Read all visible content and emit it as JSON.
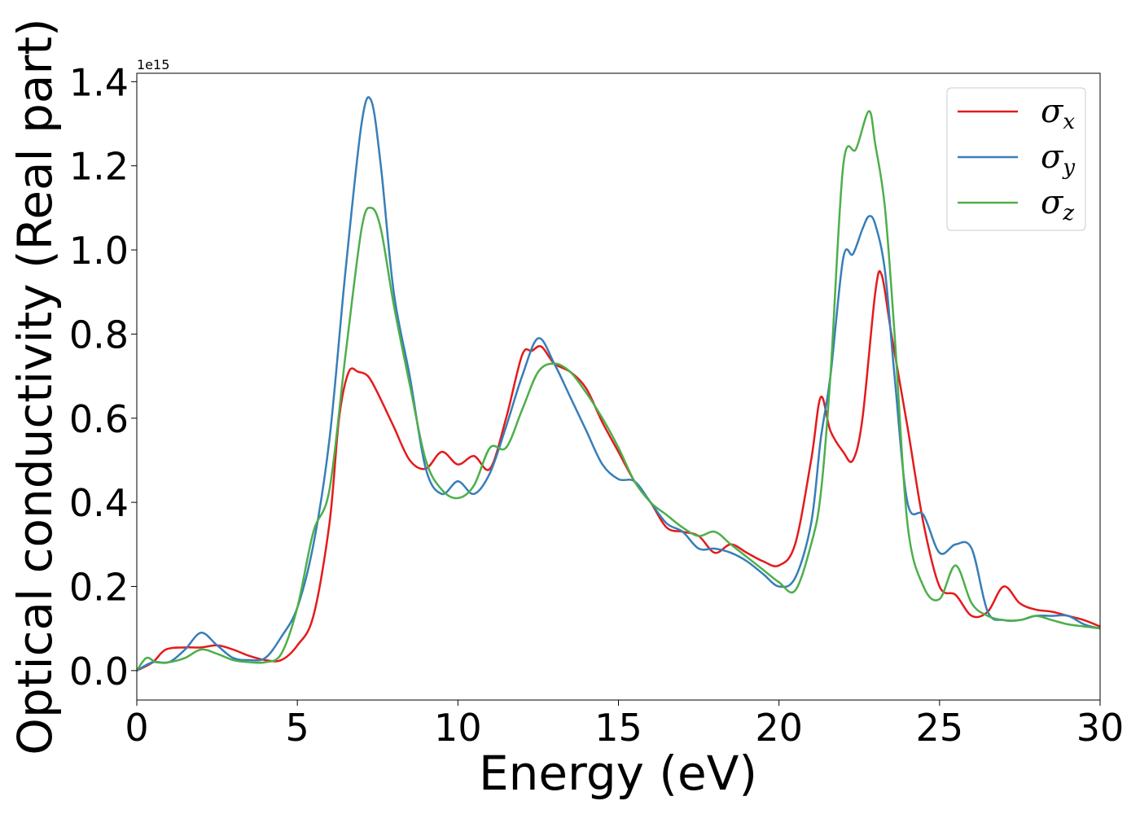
{
  "chart_data": {
    "type": "line",
    "title": "",
    "xlabel": "Energy (eV)",
    "ylabel": "Optical conductivity (Real part)",
    "y_offset_label": "1e15",
    "xlim": [
      0,
      30
    ],
    "ylim": [
      -0.07,
      1.42
    ],
    "xticks": [
      0,
      5,
      10,
      15,
      20,
      25,
      30
    ],
    "xtick_labels": [
      "0",
      "5",
      "10",
      "15",
      "20",
      "25",
      "30"
    ],
    "yticks": [
      0.0,
      0.2,
      0.4,
      0.6,
      0.8,
      1.0,
      1.2,
      1.4
    ],
    "ytick_labels": [
      "0.0",
      "0.2",
      "0.4",
      "0.6",
      "0.8",
      "1.0",
      "1.2",
      "1.4"
    ],
    "grid": false,
    "legend_position": "top-right",
    "series": [
      {
        "name": "σx",
        "legend_base": "σ",
        "legend_sub": "x",
        "color": "#e41a1c",
        "x": [
          0,
          0.5,
          0.9,
          1.5,
          2.0,
          2.5,
          3.0,
          3.5,
          4.0,
          4.5,
          5.0,
          5.5,
          6.0,
          6.3,
          6.6,
          6.9,
          7.2,
          7.5,
          8.0,
          8.5,
          9.0,
          9.5,
          10.0,
          10.5,
          11.0,
          11.5,
          12.0,
          12.3,
          12.6,
          13.0,
          13.5,
          14.0,
          14.5,
          15.0,
          15.5,
          16.0,
          16.5,
          17.0,
          17.5,
          18.0,
          18.5,
          19.0,
          19.5,
          20.0,
          20.5,
          21.0,
          21.3,
          21.6,
          22.0,
          22.3,
          22.6,
          23.0,
          23.2,
          23.5,
          24.0,
          24.5,
          25.0,
          25.5,
          26.0,
          26.5,
          27.0,
          27.5,
          28.0,
          28.5,
          29.0,
          29.5,
          30.0
        ],
        "values": [
          0.0,
          0.02,
          0.05,
          0.055,
          0.055,
          0.06,
          0.05,
          0.035,
          0.025,
          0.025,
          0.06,
          0.13,
          0.35,
          0.6,
          0.71,
          0.71,
          0.7,
          0.66,
          0.58,
          0.5,
          0.48,
          0.52,
          0.49,
          0.51,
          0.48,
          0.6,
          0.75,
          0.76,
          0.77,
          0.73,
          0.71,
          0.67,
          0.59,
          0.52,
          0.45,
          0.4,
          0.34,
          0.33,
          0.32,
          0.28,
          0.3,
          0.28,
          0.26,
          0.25,
          0.3,
          0.5,
          0.65,
          0.57,
          0.52,
          0.5,
          0.6,
          0.9,
          0.94,
          0.8,
          0.58,
          0.35,
          0.2,
          0.18,
          0.13,
          0.14,
          0.2,
          0.16,
          0.145,
          0.14,
          0.13,
          0.12,
          0.105
        ]
      },
      {
        "name": "σy",
        "legend_base": "σ",
        "legend_sub": "y",
        "color": "#377eb8",
        "x": [
          0,
          0.5,
          1.0,
          1.5,
          2.0,
          2.5,
          3.0,
          3.5,
          4.0,
          4.5,
          5.0,
          5.5,
          6.0,
          6.5,
          7.0,
          7.3,
          7.6,
          8.0,
          8.5,
          9.0,
          9.5,
          10.0,
          10.5,
          11.0,
          11.5,
          12.0,
          12.5,
          13.0,
          13.5,
          14.0,
          14.5,
          15.0,
          15.5,
          16.0,
          16.5,
          17.0,
          17.5,
          18.0,
          18.5,
          19.0,
          19.5,
          20.0,
          20.5,
          21.0,
          21.3,
          21.6,
          22.0,
          22.3,
          22.6,
          22.8,
          23.0,
          23.3,
          23.6,
          24.0,
          24.5,
          25.0,
          25.5,
          26.0,
          26.5,
          27.0,
          27.5,
          28.0,
          28.5,
          29.0,
          29.5,
          30.0
        ],
        "values": [
          0.0,
          0.02,
          0.02,
          0.05,
          0.09,
          0.06,
          0.03,
          0.025,
          0.03,
          0.08,
          0.15,
          0.3,
          0.55,
          0.95,
          1.3,
          1.355,
          1.2,
          0.9,
          0.7,
          0.48,
          0.42,
          0.45,
          0.42,
          0.47,
          0.58,
          0.7,
          0.79,
          0.73,
          0.65,
          0.57,
          0.49,
          0.455,
          0.45,
          0.4,
          0.35,
          0.33,
          0.29,
          0.29,
          0.28,
          0.26,
          0.23,
          0.2,
          0.22,
          0.35,
          0.55,
          0.7,
          0.98,
          0.99,
          1.05,
          1.08,
          1.06,
          0.95,
          0.7,
          0.4,
          0.37,
          0.28,
          0.3,
          0.29,
          0.14,
          0.12,
          0.12,
          0.13,
          0.13,
          0.13,
          0.11,
          0.1
        ]
      },
      {
        "name": "σz",
        "legend_base": "σ",
        "legend_sub": "z",
        "color": "#4daf4a",
        "x": [
          0,
          0.3,
          0.6,
          1.0,
          1.5,
          2.0,
          2.5,
          3.0,
          3.5,
          4.0,
          4.5,
          5.0,
          5.5,
          6.0,
          6.5,
          7.0,
          7.3,
          7.6,
          8.0,
          8.5,
          9.0,
          9.5,
          10.0,
          10.5,
          11.0,
          11.5,
          12.0,
          12.5,
          13.0,
          13.5,
          14.0,
          14.5,
          15.0,
          15.5,
          16.0,
          16.5,
          17.0,
          17.5,
          18.0,
          18.5,
          19.0,
          19.5,
          20.0,
          20.5,
          21.0,
          21.3,
          21.6,
          22.0,
          22.4,
          22.8,
          23.0,
          23.3,
          23.6,
          24.0,
          24.5,
          25.0,
          25.5,
          26.0,
          26.5,
          27.0,
          27.5,
          28.0,
          28.5,
          29.0,
          29.5,
          30.0
        ],
        "values": [
          0.0,
          0.03,
          0.02,
          0.02,
          0.03,
          0.05,
          0.04,
          0.025,
          0.02,
          0.02,
          0.04,
          0.15,
          0.33,
          0.43,
          0.75,
          1.05,
          1.1,
          1.05,
          0.87,
          0.68,
          0.5,
          0.43,
          0.41,
          0.44,
          0.53,
          0.53,
          0.62,
          0.71,
          0.73,
          0.71,
          0.66,
          0.6,
          0.53,
          0.45,
          0.4,
          0.37,
          0.34,
          0.32,
          0.33,
          0.3,
          0.27,
          0.24,
          0.21,
          0.19,
          0.3,
          0.42,
          0.7,
          1.2,
          1.24,
          1.33,
          1.25,
          1.1,
          0.8,
          0.35,
          0.2,
          0.17,
          0.25,
          0.16,
          0.13,
          0.12,
          0.12,
          0.13,
          0.12,
          0.11,
          0.105,
          0.1
        ]
      }
    ]
  }
}
